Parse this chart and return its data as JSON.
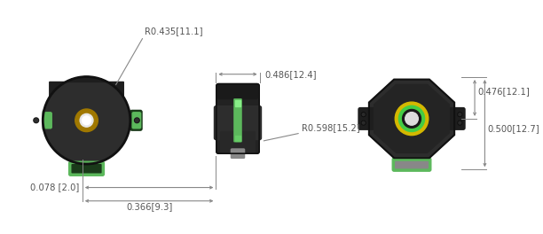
{
  "bg_color": "#ffffff",
  "dark_gray": "#2d2d2d",
  "darker_gray": "#1a1a1a",
  "mid_gray": "#3a3a3a",
  "green_color": "#5cb85c",
  "green_dark": "#2a5a2a",
  "yellow_color": "#d4b800",
  "gold_color": "#a07800",
  "white_color": "#ffffff",
  "annotation_color": "#555555",
  "dim_line_color": "#888888",
  "dims": {
    "R0435": "R0.435[11.1]",
    "d486": "0.486[12.4]",
    "d476": "0.476[12.1]",
    "d500": "0.500[12.7]",
    "R0598": "R0.598[15.2]",
    "d078": "0.078 [2.0]",
    "d366": "0.366[9.3]"
  }
}
